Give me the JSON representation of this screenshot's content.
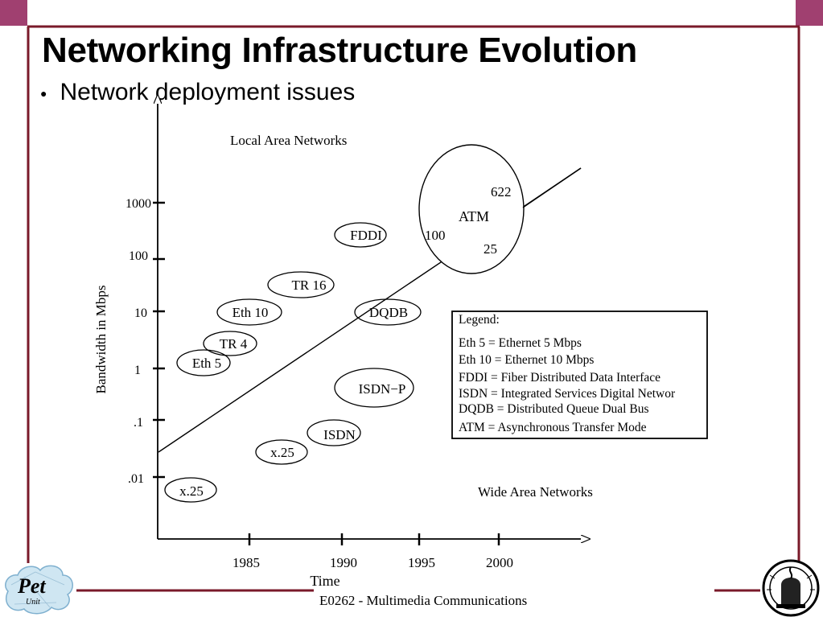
{
  "slide": {
    "title": "Networking Infrastructure Evolution",
    "bullet": "Network deployment issues",
    "footer": "E0262 - Multimedia Communications",
    "colors": {
      "frame": "#7a1a2a",
      "corner": "#a04070",
      "text": "#000000",
      "logo_cloud": "#cfe6f2"
    }
  },
  "logo_left": {
    "text": "Pet",
    "subtext": "Unit"
  },
  "diagram": {
    "y_axis_label": "Bandwidth in Mbps",
    "x_axis_label": "Time",
    "y_ticks": [
      "1000",
      "100",
      "10",
      "1",
      ".1",
      ".01"
    ],
    "x_ticks": [
      "1985",
      "1990",
      "1995",
      "2000"
    ],
    "region_top": "Local Area Networks",
    "region_bottom": "Wide Area Networks",
    "labels": {
      "fddi": "FDDI",
      "tr16": "TR 16",
      "eth10": "Eth 10",
      "tr4": "TR 4",
      "eth5": "Eth 5",
      "dqdb": "DQDB",
      "isdnp": "ISDN−P",
      "isdn": "ISDN",
      "x25a": "x.25",
      "x25b": "x.25",
      "atm": "ATM",
      "atm622": "622",
      "atm100": "100",
      "atm25": "25"
    },
    "legend": {
      "title": "Legend:",
      "items": [
        "Eth 5 = Ethernet 5 Mbps",
        "Eth 10 = Ethernet 10 Mbps",
        "FDDI = Fiber Distributed Data Interface",
        "ISDN = Integrated Services Digital Networ",
        "DQDB = Distributed Queue Dual Bus",
        "ATM = Asynchronous Transfer Mode"
      ]
    }
  }
}
